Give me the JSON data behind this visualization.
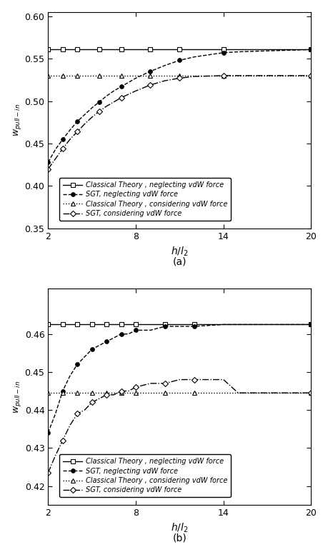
{
  "subplot_a": {
    "x": [
      2,
      2.5,
      3,
      3.5,
      4,
      4.5,
      5,
      5.5,
      6,
      6.5,
      7,
      7.5,
      8,
      9,
      10,
      11,
      12,
      14,
      15,
      20
    ],
    "classical_neglect": [
      0.5607,
      0.5607,
      0.5607,
      0.5607,
      0.5607,
      0.5607,
      0.5607,
      0.5607,
      0.5607,
      0.5607,
      0.5607,
      0.5607,
      0.5607,
      0.5607,
      0.5607,
      0.5607,
      0.5607,
      0.5607,
      0.5607,
      0.5607
    ],
    "sgt_neglect": [
      0.428,
      0.443,
      0.455,
      0.466,
      0.476,
      0.484,
      0.492,
      0.499,
      0.506,
      0.512,
      0.517,
      0.522,
      0.527,
      0.535,
      0.542,
      0.548,
      0.552,
      0.557,
      0.558,
      0.5607
    ],
    "classical_consider": [
      0.53,
      0.53,
      0.53,
      0.53,
      0.53,
      0.53,
      0.53,
      0.53,
      0.53,
      0.53,
      0.53,
      0.53,
      0.53,
      0.53,
      0.53,
      0.53,
      0.53,
      0.53,
      0.53,
      0.53
    ],
    "sgt_consider": [
      0.42,
      0.432,
      0.444,
      0.455,
      0.464,
      0.473,
      0.481,
      0.488,
      0.494,
      0.499,
      0.504,
      0.508,
      0.512,
      0.519,
      0.524,
      0.527,
      0.529,
      0.53,
      0.53,
      0.53
    ],
    "ylim": [
      0.35,
      0.605
    ],
    "yticks": [
      0.35,
      0.4,
      0.45,
      0.5,
      0.55,
      0.6
    ],
    "xlabel": "$h/l_2$",
    "ylabel": "$w_{pull-in}$",
    "label": "(a)"
  },
  "subplot_b": {
    "x": [
      2,
      2.5,
      3,
      3.5,
      4,
      4.5,
      5,
      5.5,
      6,
      6.5,
      7,
      7.5,
      8,
      9,
      10,
      11,
      12,
      14,
      15,
      20
    ],
    "classical_neglect": [
      0.4625,
      0.4625,
      0.4625,
      0.4625,
      0.4625,
      0.4625,
      0.4625,
      0.4625,
      0.4625,
      0.4625,
      0.4625,
      0.4625,
      0.4625,
      0.4625,
      0.4625,
      0.4625,
      0.4625,
      0.4625,
      0.4625,
      0.4625
    ],
    "sgt_neglect": [
      0.434,
      0.439,
      0.445,
      0.449,
      0.452,
      0.454,
      0.456,
      0.457,
      0.458,
      0.459,
      0.46,
      0.46,
      0.461,
      0.461,
      0.462,
      0.462,
      0.462,
      0.4625,
      0.4625,
      0.4625
    ],
    "classical_consider": [
      0.4445,
      0.4445,
      0.4445,
      0.4445,
      0.4445,
      0.4445,
      0.4445,
      0.4445,
      0.4445,
      0.4445,
      0.4445,
      0.4445,
      0.4445,
      0.4445,
      0.4445,
      0.4445,
      0.4445,
      0.4445,
      0.4445,
      0.4445
    ],
    "sgt_consider": [
      0.4235,
      0.428,
      0.432,
      0.436,
      0.439,
      0.44,
      0.442,
      0.443,
      0.444,
      0.444,
      0.445,
      0.445,
      0.446,
      0.447,
      0.447,
      0.448,
      0.448,
      0.448,
      0.4445,
      0.4445
    ],
    "ylim": [
      0.415,
      0.472
    ],
    "yticks": [
      0.42,
      0.43,
      0.44,
      0.45,
      0.46
    ],
    "xlabel": "$h/l_2$",
    "ylabel": "$w_{pull-in}$",
    "label": "(b)"
  },
  "xticks": [
    2,
    8,
    14,
    20
  ],
  "legend_labels": [
    "Classical Theory , neglecting vdW force",
    "SGT, neglecting vdW force",
    "Classical Theory , considering vdW force",
    "SGT, considering vdW force"
  ],
  "line_styles": [
    "-",
    "--",
    ":",
    "-."
  ],
  "markers": [
    "s",
    "o",
    "^",
    "D"
  ],
  "marker_indices_a": [
    0,
    2,
    4,
    7,
    10,
    13,
    15,
    17,
    19
  ],
  "marker_indices_b": [
    0,
    2,
    4,
    6,
    8,
    10,
    12,
    14,
    16,
    19
  ],
  "color": "black"
}
